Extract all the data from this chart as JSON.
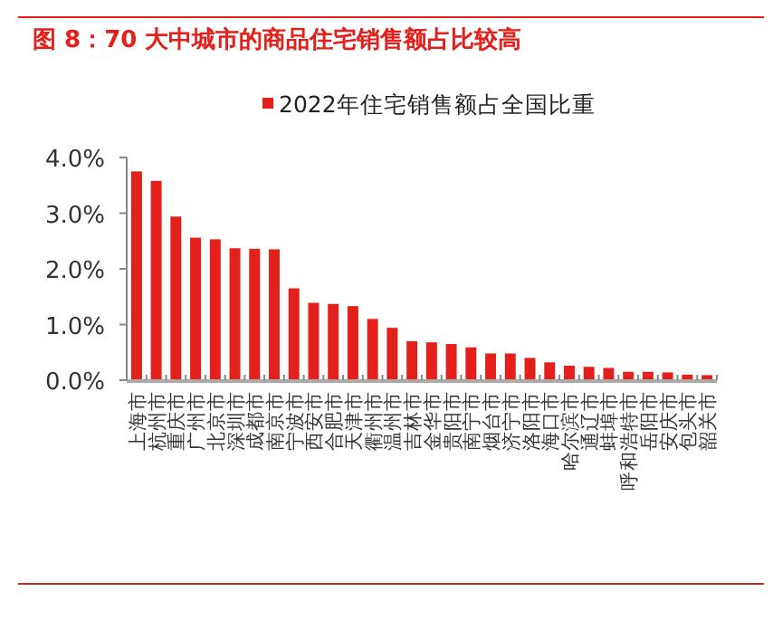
{
  "chart_data": {
    "type": "bar",
    "title": "图 8：70 大中城市的商品住宅销售额占比较高",
    "categories": [
      "上海市",
      "杭州市",
      "重庆市",
      "广州市",
      "北京市",
      "深圳市",
      "成都市",
      "南京市",
      "宁波市",
      "西安市",
      "合肥市",
      "天津市",
      "衢州市",
      "温州市",
      "吉林市",
      "金华市",
      "贵阳市",
      "南宁市",
      "烟台市",
      "济宁市",
      "洛阳市",
      "海口市",
      "哈尔滨市",
      "通辽市",
      "蚌埠市",
      "呼和浩特市",
      "岳阳市",
      "安庆市",
      "包头市",
      "韶关市"
    ],
    "series": [
      {
        "name": "2022年住宅销售额占全国比重",
        "color": "#e3201b",
        "values": [
          3.75,
          3.58,
          2.94,
          2.56,
          2.53,
          2.37,
          2.36,
          2.35,
          1.65,
          1.39,
          1.37,
          1.33,
          1.1,
          0.94,
          0.7,
          0.68,
          0.65,
          0.59,
          0.48,
          0.48,
          0.4,
          0.32,
          0.26,
          0.24,
          0.22,
          0.15,
          0.15,
          0.14,
          0.1,
          0.09
        ]
      }
    ],
    "ylim": [
      0,
      4
    ],
    "yticks": [
      {
        "value": 0,
        "label": "0.0%"
      },
      {
        "value": 1,
        "label": "1.0%"
      },
      {
        "value": 2,
        "label": "2.0%"
      },
      {
        "value": 3,
        "label": "3.0%"
      },
      {
        "value": 4,
        "label": "4.0%"
      }
    ],
    "legend": "top",
    "grid": false
  }
}
